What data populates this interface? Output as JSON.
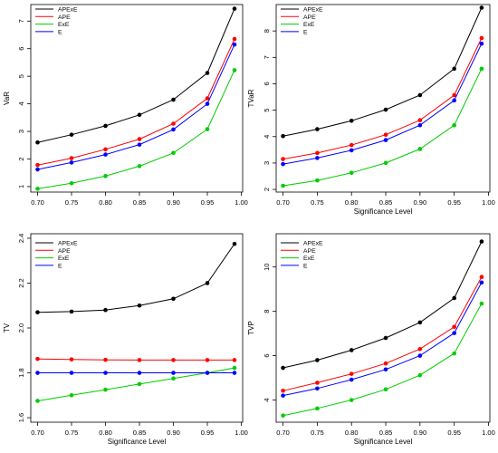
{
  "chart_data": [
    {
      "type": "line",
      "xlabel": "",
      "ylabel": "VaR",
      "x": [
        0.7,
        0.75,
        0.8,
        0.85,
        0.9,
        0.95,
        0.99
      ],
      "xticks": [
        "0.70",
        "0.75",
        "0.80",
        "0.85",
        "0.90",
        "0.95",
        "1.00"
      ],
      "xlim": [
        0.69,
        1.002
      ],
      "yticks": [
        "1",
        "2",
        "3",
        "4",
        "5",
        "6",
        "7"
      ],
      "ylim": [
        0.8,
        7.6
      ],
      "legend_position": "top-left",
      "series": [
        {
          "name": "APExE",
          "color": "#000000",
          "values": [
            2.6,
            2.88,
            3.2,
            3.6,
            4.15,
            5.12,
            7.45
          ]
        },
        {
          "name": "APE",
          "color": "#ff0000",
          "values": [
            1.78,
            2.03,
            2.35,
            2.72,
            3.28,
            4.2,
            6.35
          ]
        },
        {
          "name": "ExE",
          "color": "#00cc00",
          "values": [
            0.92,
            1.12,
            1.38,
            1.74,
            2.22,
            3.08,
            5.22
          ]
        },
        {
          "name": "E",
          "color": "#0000ff",
          "values": [
            1.62,
            1.87,
            2.16,
            2.52,
            3.07,
            4.0,
            6.15
          ]
        }
      ]
    },
    {
      "type": "line",
      "xlabel": "Significance Level",
      "ylabel": "TVaR",
      "x": [
        0.7,
        0.75,
        0.8,
        0.85,
        0.9,
        0.95,
        0.99
      ],
      "xticks": [
        "0.70",
        "0.75",
        "0.80",
        "0.85",
        "0.90",
        "0.95",
        "1.00"
      ],
      "xlim": [
        0.69,
        1.002
      ],
      "yticks": [
        "2",
        "3",
        "4",
        "5",
        "6",
        "7",
        "8"
      ],
      "ylim": [
        1.9,
        9.0
      ],
      "legend_position": "top-left",
      "series": [
        {
          "name": "APExE",
          "color": "#000000",
          "values": [
            4.02,
            4.28,
            4.6,
            5.02,
            5.57,
            6.57,
            8.88
          ]
        },
        {
          "name": "APE",
          "color": "#ff0000",
          "values": [
            3.15,
            3.38,
            3.68,
            4.07,
            4.62,
            5.57,
            7.73
          ]
        },
        {
          "name": "ExE",
          "color": "#00cc00",
          "values": [
            2.14,
            2.34,
            2.63,
            3.0,
            3.53,
            4.43,
            6.57
          ]
        },
        {
          "name": "E",
          "color": "#0000ff",
          "values": [
            2.96,
            3.19,
            3.48,
            3.87,
            4.43,
            5.37,
            7.52
          ]
        }
      ]
    },
    {
      "type": "line",
      "xlabel": "Significance Level",
      "ylabel": "TV",
      "x": [
        0.7,
        0.75,
        0.8,
        0.85,
        0.9,
        0.95,
        0.99
      ],
      "xticks": [
        "0.70",
        "0.75",
        "0.80",
        "0.85",
        "0.90",
        "0.95",
        "1.00"
      ],
      "xlim": [
        0.69,
        1.002
      ],
      "yticks": [
        "1.6",
        "1.8",
        "2.0",
        "2.2",
        "2.4"
      ],
      "ylim": [
        1.58,
        2.42
      ],
      "legend_position": "top-left",
      "series": [
        {
          "name": "APExE",
          "color": "#000000",
          "values": [
            2.07,
            2.073,
            2.08,
            2.1,
            2.13,
            2.2,
            2.375
          ]
        },
        {
          "name": "APE",
          "color": "#ff0000",
          "values": [
            1.862,
            1.86,
            1.858,
            1.857,
            1.857,
            1.857,
            1.857
          ]
        },
        {
          "name": "ExE",
          "color": "#00cc00",
          "values": [
            1.675,
            1.7,
            1.725,
            1.75,
            1.775,
            1.8,
            1.822
          ]
        },
        {
          "name": "E",
          "color": "#0000ff",
          "values": [
            1.8,
            1.8,
            1.8,
            1.8,
            1.8,
            1.8,
            1.8
          ]
        }
      ]
    },
    {
      "type": "line",
      "xlabel": "Significance Level",
      "ylabel": "TVP",
      "x": [
        0.7,
        0.75,
        0.8,
        0.85,
        0.9,
        0.95,
        0.99
      ],
      "xticks": [
        "0.70",
        "0.75",
        "0.80",
        "0.85",
        "0.90",
        "0.95",
        "1.00"
      ],
      "xlim": [
        0.69,
        1.002
      ],
      "yticks": [
        "4",
        "6",
        "8",
        "10"
      ],
      "ylim": [
        3.0,
        11.5
      ],
      "legend_position": "top-left",
      "series": [
        {
          "name": "APExE",
          "color": "#000000",
          "values": [
            5.45,
            5.8,
            6.25,
            6.8,
            7.5,
            8.6,
            11.15
          ]
        },
        {
          "name": "APE",
          "color": "#ff0000",
          "values": [
            4.42,
            4.78,
            5.18,
            5.65,
            6.3,
            7.3,
            9.55
          ]
        },
        {
          "name": "ExE",
          "color": "#00cc00",
          "values": [
            3.3,
            3.62,
            4.0,
            4.48,
            5.12,
            6.1,
            8.35
          ]
        },
        {
          "name": "E",
          "color": "#0000ff",
          "values": [
            4.2,
            4.52,
            4.92,
            5.38,
            6.0,
            7.02,
            9.3
          ]
        }
      ]
    }
  ]
}
